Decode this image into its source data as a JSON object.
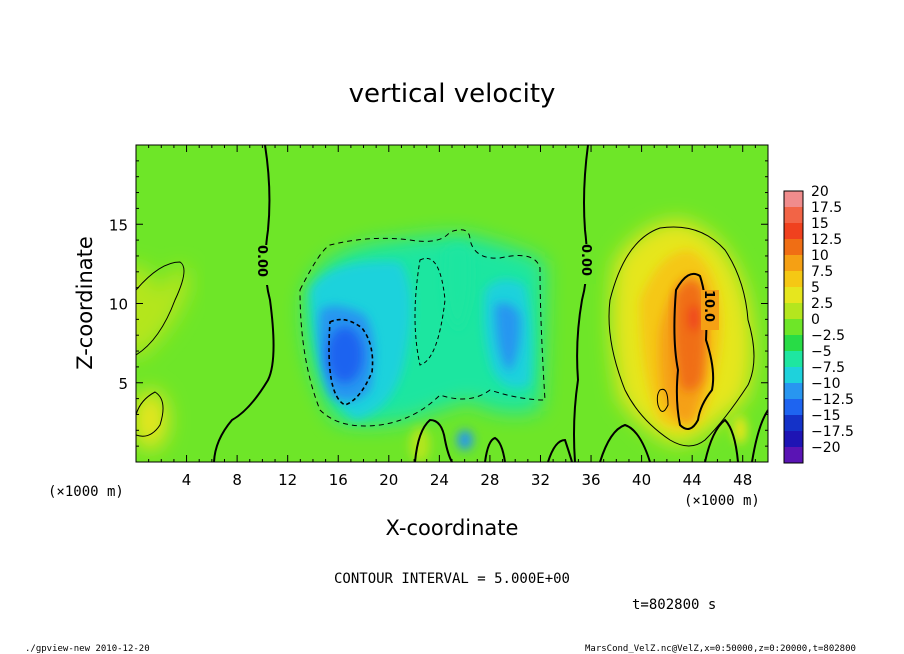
{
  "chart_data": {
    "type": "heatmap",
    "title": "vertical velocity",
    "xlabel": "X-coordinate",
    "ylabel": "Z-coordinate",
    "x_unit_left": "(×1000 m)",
    "x_unit_right": "(×1000 m)",
    "xlim": [
      0,
      50
    ],
    "ylim": [
      0,
      20
    ],
    "x_ticks": [
      4,
      8,
      12,
      16,
      20,
      24,
      28,
      32,
      36,
      40,
      44,
      48
    ],
    "y_ticks": [
      5,
      10,
      15
    ],
    "colorbar": {
      "levels": [
        "20",
        "17.5",
        "15",
        "12.5",
        "10",
        "7.5",
        "5",
        "2.5",
        "0",
        "−2.5",
        "−5",
        "−7.5",
        "−10",
        "−12.5",
        "−15",
        "−17.5",
        "−20"
      ],
      "colors": [
        "#f08c8c",
        "#f26446",
        "#f0411e",
        "#f06e14",
        "#f5a014",
        "#f5c814",
        "#e6e61e",
        "#b4e61e",
        "#6ee628",
        "#28dc46",
        "#1ee6a0",
        "#1ed2dc",
        "#2896f0",
        "#1e64f0",
        "#1432c8",
        "#1e14b4",
        "#5a14b4"
      ]
    },
    "contour_labels": [
      "0.00",
      "0.00",
      "10.0"
    ],
    "contour_interval": "CONTOUR INTERVAL = 5.000E+00",
    "time_label": "t=802800 s",
    "features": [
      {
        "name": "downdraft",
        "x": 16,
        "z": 7,
        "value": -12.5
      },
      {
        "name": "downdraft",
        "x": 29,
        "z": 8,
        "value": -7.5
      },
      {
        "name": "updraft",
        "x": 44,
        "z": 8.5,
        "value": 14
      },
      {
        "name": "weak-updraft",
        "x": 2,
        "z": 9,
        "value": 5
      }
    ]
  },
  "footer": {
    "left": "./gpview-new   2010-12-20",
    "right": "MarsCond_VelZ.nc@VelZ,x=0:50000,z=0:20000,t=802800"
  }
}
